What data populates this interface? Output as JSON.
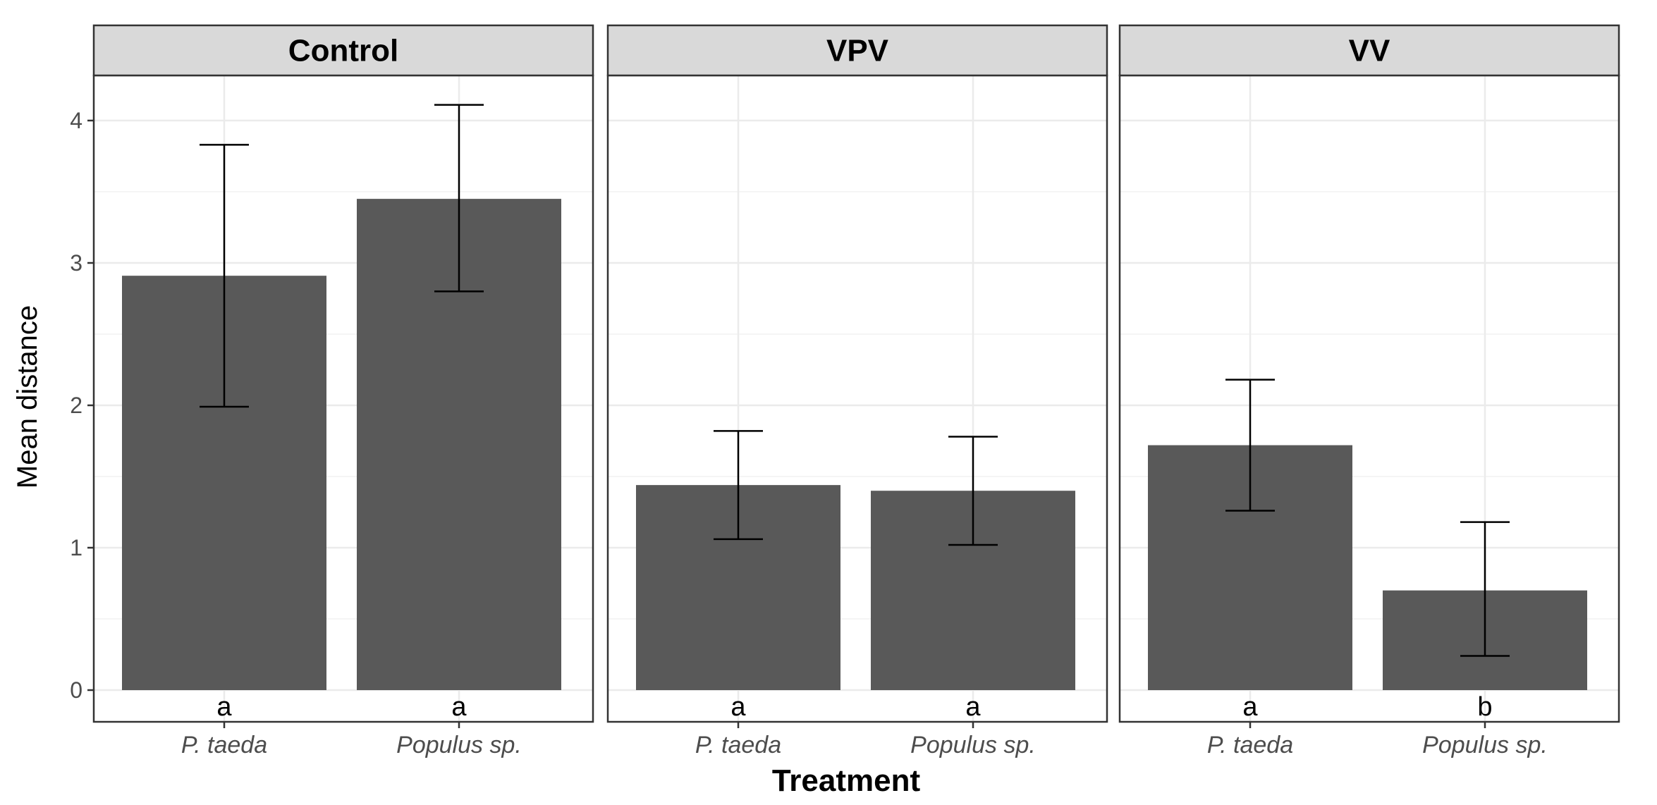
{
  "chart_data": {
    "type": "bar",
    "ylabel": "Mean distance",
    "xlabel": "Treatment",
    "ylim": [
      0,
      4.3
    ],
    "yticks": [
      0,
      1,
      2,
      3,
      4
    ],
    "grid": true,
    "bar_color": "#595959",
    "panels": [
      {
        "title": "Control",
        "categories": [
          "P. taeda",
          "Populus sp."
        ],
        "values": [
          2.91,
          3.45
        ],
        "error_low": [
          1.99,
          2.8
        ],
        "error_high": [
          3.83,
          4.11
        ],
        "labels": [
          "a",
          "a"
        ]
      },
      {
        "title": "VPV",
        "categories": [
          "P. taeda",
          "Populus sp."
        ],
        "values": [
          1.44,
          1.4
        ],
        "error_low": [
          1.06,
          1.02
        ],
        "error_high": [
          1.82,
          1.78
        ],
        "labels": [
          "a",
          "a"
        ]
      },
      {
        "title": "VV",
        "categories": [
          "P. taeda",
          "Populus sp."
        ],
        "values": [
          1.72,
          0.7
        ],
        "error_low": [
          1.26,
          0.24
        ],
        "error_high": [
          2.18,
          1.18
        ],
        "labels": [
          "a",
          "b"
        ]
      }
    ]
  }
}
